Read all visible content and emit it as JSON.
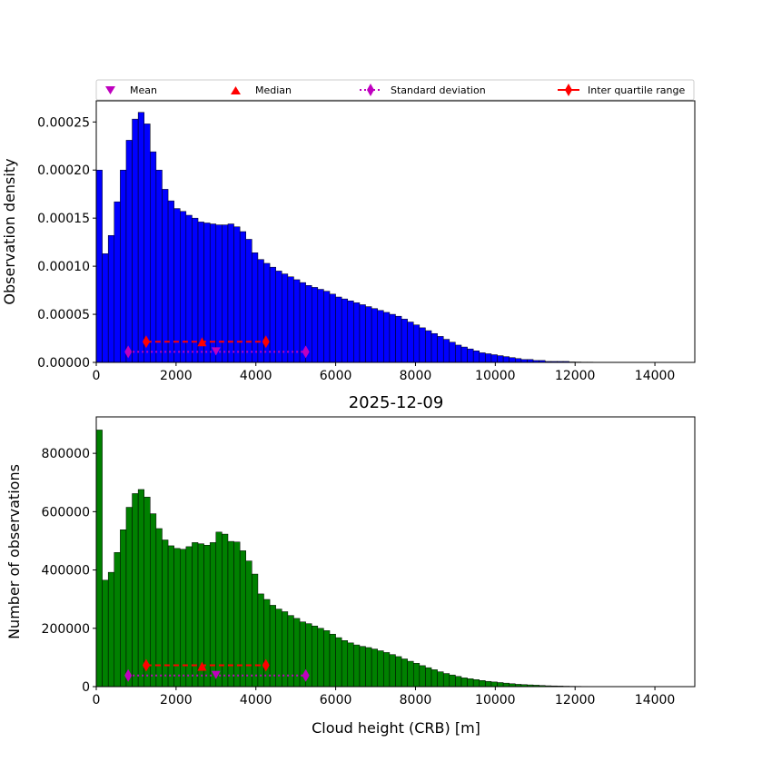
{
  "chart_data": [
    {
      "type": "bar",
      "panel": "density",
      "title": "",
      "xlabel": "",
      "ylabel": "Observation density",
      "xlim": [
        0,
        15000
      ],
      "ylim": [
        0,
        0.000272
      ],
      "bin_width": 150,
      "bar_color": "#0000ff",
      "x_ticks": [
        "0",
        "2000",
        "4000",
        "6000",
        "8000",
        "10000",
        "12000",
        "14000"
      ],
      "y_ticks": [
        "0.00000",
        "0.00005",
        "0.00010",
        "0.00015",
        "0.00020",
        "0.00025"
      ],
      "bin_starts": [
        0,
        150,
        300,
        450,
        600,
        750,
        900,
        1050,
        1200,
        1350,
        1500,
        1650,
        1800,
        1950,
        2100,
        2250,
        2400,
        2550,
        2700,
        2850,
        3000,
        3150,
        3300,
        3450,
        3600,
        3750,
        3900,
        4050,
        4200,
        4350,
        4500,
        4650,
        4800,
        4950,
        5100,
        5250,
        5400,
        5550,
        5700,
        5850,
        6000,
        6150,
        6300,
        6450,
        6600,
        6750,
        6900,
        7050,
        7200,
        7350,
        7500,
        7650,
        7800,
        7950,
        8100,
        8250,
        8400,
        8550,
        8700,
        8850,
        9000,
        9150,
        9300,
        9450,
        9600,
        9750,
        9900,
        10050,
        10200,
        10350,
        10500,
        10650,
        10800,
        10950,
        11100,
        11250,
        11400,
        11550,
        11700,
        11850,
        12000,
        12150,
        12300,
        12450,
        12600,
        12750,
        12900,
        13050,
        13200,
        13350,
        13500,
        13650,
        13800,
        13950,
        14100,
        14250,
        14400,
        14550
      ],
      "values": [
        0.0002,
        0.000113,
        0.000132,
        0.000167,
        0.0002,
        0.000231,
        0.000253,
        0.00026,
        0.000248,
        0.000219,
        0.0002,
        0.00018,
        0.000168,
        0.00016,
        0.000157,
        0.000153,
        0.00015,
        0.000146,
        0.000145,
        0.000144,
        0.000143,
        0.000143,
        0.000144,
        0.000141,
        0.000136,
        0.000128,
        0.000114,
        0.000107,
        0.000103,
        9.9e-05,
        9.5e-05,
        9.2e-05,
        8.9e-05,
        8.6e-05,
        8.3e-05,
        8e-05,
        7.8e-05,
        7.6e-05,
        7.4e-05,
        7.1e-05,
        6.8e-05,
        6.6e-05,
        6.4e-05,
        6.2e-05,
        6e-05,
        5.8e-05,
        5.6e-05,
        5.4e-05,
        5.2e-05,
        5e-05,
        4.8e-05,
        4.5e-05,
        4.2e-05,
        3.9e-05,
        3.6e-05,
        3.3e-05,
        3e-05,
        2.7e-05,
        2.4e-05,
        2.1e-05,
        1.8e-05,
        1.6e-05,
        1.4e-05,
        1.2e-05,
        1e-05,
        9e-06,
        8e-06,
        7e-06,
        6e-06,
        5e-06,
        4e-06,
        3e-06,
        3e-06,
        2e-06,
        2e-06,
        1e-06,
        1e-06,
        1e-06,
        1e-06,
        5e-07,
        4e-07,
        3e-07,
        3e-07,
        2e-07,
        2e-07,
        1e-07,
        1e-07,
        1e-07,
        0,
        0,
        0,
        0,
        0,
        0,
        0,
        0,
        0,
        0
      ],
      "markers": {
        "mean": {
          "x": 3000,
          "y": 1.1e-05
        },
        "median": {
          "x": 2650,
          "y": 2.15e-05
        },
        "std_range": {
          "x": [
            800,
            5250
          ],
          "y": 1.1e-05
        },
        "iqr_range": {
          "x": [
            1250,
            4250
          ],
          "y": 2.15e-05
        }
      }
    },
    {
      "type": "bar",
      "panel": "counts",
      "title": "2025-12-09",
      "xlabel": "Cloud height (CRB) [m]",
      "ylabel": "Number of observations",
      "xlim": [
        0,
        15000
      ],
      "ylim": [
        0,
        925000
      ],
      "bin_width": 150,
      "bar_color": "#008000",
      "x_ticks": [
        "0",
        "2000",
        "4000",
        "6000",
        "8000",
        "10000",
        "12000",
        "14000"
      ],
      "y_ticks": [
        "0",
        "200000",
        "400000",
        "600000",
        "800000"
      ],
      "bin_starts": [
        0,
        150,
        300,
        450,
        600,
        750,
        900,
        1050,
        1200,
        1350,
        1500,
        1650,
        1800,
        1950,
        2100,
        2250,
        2400,
        2550,
        2700,
        2850,
        3000,
        3150,
        3300,
        3450,
        3600,
        3750,
        3900,
        4050,
        4200,
        4350,
        4500,
        4650,
        4800,
        4950,
        5100,
        5250,
        5400,
        5550,
        5700,
        5850,
        6000,
        6150,
        6300,
        6450,
        6600,
        6750,
        6900,
        7050,
        7200,
        7350,
        7500,
        7650,
        7800,
        7950,
        8100,
        8250,
        8400,
        8550,
        8700,
        8850,
        9000,
        9150,
        9300,
        9450,
        9600,
        9750,
        9900,
        10050,
        10200,
        10350,
        10500,
        10650,
        10800,
        10950,
        11100,
        11250,
        11400,
        11550,
        11700,
        11850,
        12000,
        12150,
        12300,
        12450,
        12600,
        12750,
        12900,
        13050,
        13200,
        13350,
        13500,
        13650,
        13800,
        13950,
        14100,
        14250,
        14400,
        14550
      ],
      "values": [
        880000,
        365000,
        392000,
        460000,
        538000,
        615000,
        662000,
        676000,
        650000,
        593000,
        542000,
        503000,
        483000,
        474000,
        471000,
        480000,
        494000,
        490000,
        485000,
        494000,
        530000,
        523000,
        498000,
        496000,
        466000,
        431000,
        386000,
        318000,
        299000,
        279000,
        266000,
        257000,
        244000,
        234000,
        222000,
        216000,
        208000,
        200000,
        192000,
        180000,
        168000,
        158000,
        150000,
        143000,
        138000,
        134000,
        129000,
        123000,
        117000,
        110000,
        103000,
        95000,
        87000,
        80000,
        72000,
        65000,
        58000,
        51000,
        45000,
        40000,
        35000,
        30000,
        27000,
        24000,
        21000,
        18000,
        16000,
        14000,
        12000,
        10000,
        8000,
        7000,
        6000,
        5000,
        4000,
        3000,
        2500,
        2000,
        1500,
        1200,
        1000,
        800,
        600,
        500,
        400,
        300,
        200,
        150,
        0,
        0,
        0,
        0,
        0,
        0,
        0,
        0,
        0,
        0
      ],
      "markers": {
        "mean": {
          "x": 3000,
          "y": 38000
        },
        "median": {
          "x": 2650,
          "y": 70000
        },
        "std_range": {
          "x": [
            800,
            5250
          ],
          "y": 38000
        },
        "iqr_range": {
          "x": [
            1250,
            4250
          ],
          "y": 73000
        }
      }
    }
  ],
  "legend": {
    "placement": "top",
    "mean_label": "Mean",
    "median_label": "Median",
    "std_label": "Standard deviation",
    "iqr_label": "Inter quartile range",
    "mean_color": "#bf00bf",
    "median_color": "#ff0000",
    "std_color": "#bf00bf",
    "iqr_color": "#ff0000"
  }
}
